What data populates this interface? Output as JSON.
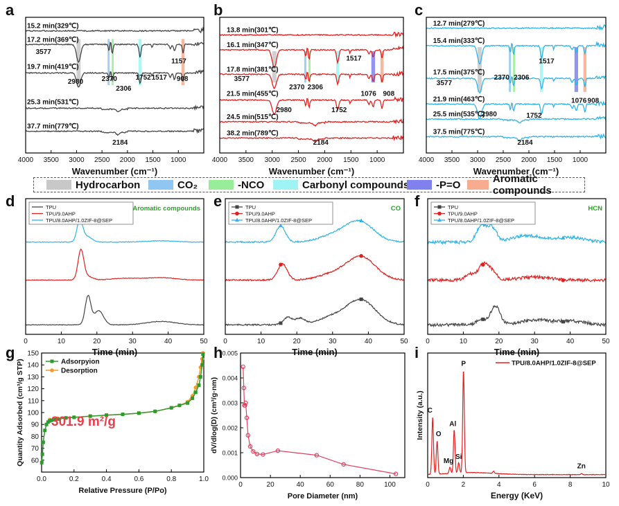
{
  "legend_bar": [
    {
      "label": "Hydrocarbon",
      "color": "#c8c8c8"
    },
    {
      "label": "CO₂",
      "color": "#8fc7f2"
    },
    {
      "label": "-NCO",
      "color": "#98ee98"
    },
    {
      "label": "Carbonyl compounds",
      "color": "#9ef4f4"
    },
    {
      "label": "-P=O",
      "color": "#8080ee"
    },
    {
      "label": "Aromatic compounds",
      "color": "#f7ac8f"
    }
  ],
  "chart_data": [
    {
      "panel": "a",
      "type": "line",
      "title": "",
      "xlabel": "Wavenumber (cm⁻¹)",
      "ylabel": "",
      "xlim": [
        4000,
        500
      ],
      "xticks": [
        4000,
        3500,
        3000,
        2500,
        2000,
        1500,
        1000
      ],
      "line_color": "#444444",
      "series": [
        {
          "name": "15.2 min(329℃)"
        },
        {
          "name": "17.2 min(369℃)"
        },
        {
          "name": "19.7 min(419℃)"
        },
        {
          "name": "25.3 min(531℃)"
        },
        {
          "name": "37.7 min(779℃)"
        }
      ],
      "bands": [
        "Hydrocarbon",
        "CO₂",
        "-NCO",
        "Carbonyl compounds",
        "Aromatic compounds"
      ],
      "annotations": [
        "3577",
        "2980",
        "2370",
        "2306",
        "1752",
        "1517",
        "1157",
        "908",
        "2184"
      ]
    },
    {
      "panel": "b",
      "type": "line",
      "title": "",
      "xlabel": "Wavenumber (cm⁻¹)",
      "ylabel": "",
      "xlim": [
        4000,
        500
      ],
      "xticks": [
        4000,
        3500,
        3000,
        2500,
        2000,
        1500,
        1000
      ],
      "line_color": "#e0201e",
      "series": [
        {
          "name": "13.8 min(301℃)"
        },
        {
          "name": "16.1 min(347℃)"
        },
        {
          "name": "17.8 min(381℃)"
        },
        {
          "name": "21.5 min(455℃)"
        },
        {
          "name": "24.5 min(515℃)"
        },
        {
          "name": "38.2 min(789℃)"
        }
      ],
      "bands": [
        "Hydrocarbon",
        "CO₂",
        "-NCO",
        "Carbonyl compounds",
        "-P=O",
        "Aromatic compounds"
      ],
      "annotations": [
        "1517",
        "3577",
        "2370",
        "2306",
        "1076",
        "908",
        "2980",
        "1752",
        "2184"
      ]
    },
    {
      "panel": "c",
      "type": "line",
      "title": "",
      "xlabel": "Wavenumber (cm⁻¹)",
      "ylabel": "",
      "xlim": [
        4000,
        500
      ],
      "xticks": [
        4000,
        3500,
        3000,
        2500,
        2000,
        1500,
        1000
      ],
      "line_color": "#2fb4e8",
      "series": [
        {
          "name": "12.7 min(279℃)"
        },
        {
          "name": "15.4 min(333℃)"
        },
        {
          "name": "17.5 min(375℃)"
        },
        {
          "name": "21.9 min(463℃)"
        },
        {
          "name": "25.5 min(535℃)"
        },
        {
          "name": "37.5 min(775℃)"
        }
      ],
      "bands": [
        "Hydrocarbon",
        "CO₂",
        "-NCO",
        "Carbonyl compounds",
        "-P=O",
        "Aromatic compounds"
      ],
      "annotations": [
        "1517",
        "3577",
        "2370",
        "2306",
        "1076",
        "908",
        "2980",
        "1752",
        "2184"
      ]
    },
    {
      "panel": "d",
      "type": "line",
      "title": "Aromatic compounds",
      "xlabel": "Time (min)",
      "ylabel": "",
      "xlim": [
        0,
        50
      ],
      "xticks": [
        0,
        10,
        20,
        30,
        40,
        50
      ],
      "series": [
        {
          "name": "TPU",
          "color": "#444444",
          "marker": "",
          "peaks": [
            [
              17.5,
              1.0
            ],
            [
              20.5,
              0.5
            ],
            [
              38,
              0.12
            ]
          ]
        },
        {
          "name": "TPU/9.0AHP",
          "color": "#e0201e",
          "marker": "",
          "peaks": [
            [
              15.5,
              1.0
            ],
            [
              17.5,
              0.12
            ],
            [
              28,
              0.06
            ],
            [
              38,
              0.08
            ]
          ]
        },
        {
          "name": "TPU/8.0AHP/1.0ZIF-8@SEP",
          "color": "#2fb4e8",
          "marker": "",
          "peaks": [
            [
              15.2,
              1.0
            ],
            [
              17.3,
              0.25
            ],
            [
              38,
              0.06
            ]
          ]
        }
      ]
    },
    {
      "panel": "e",
      "type": "line",
      "title": "CO",
      "xlabel": "Time (min)",
      "ylabel": "",
      "xlim": [
        0,
        50
      ],
      "xticks": [
        0,
        10,
        20,
        30,
        40,
        50
      ],
      "series": [
        {
          "name": "TPU",
          "color": "#444444",
          "marker": "square",
          "peaks": [
            [
              17.5,
              0.3
            ],
            [
              21,
              0.25
            ],
            [
              30,
              0.3
            ],
            [
              38,
              1.0
            ]
          ]
        },
        {
          "name": "TPU/9.0AHP",
          "color": "#e0201e",
          "marker": "circle",
          "peaks": [
            [
              16,
              0.7
            ],
            [
              30,
              0.25
            ],
            [
              38,
              1.0
            ]
          ]
        },
        {
          "name": "TPU/8.0AHP/1.0ZIF-8@SEP",
          "color": "#2fb4e8",
          "marker": "triangle",
          "peaks": [
            [
              15.5,
              0.8
            ],
            [
              30,
              0.3
            ],
            [
              37.5,
              1.0
            ]
          ]
        }
      ]
    },
    {
      "panel": "f",
      "type": "line",
      "title": "HCN",
      "xlabel": "Time (min)",
      "ylabel": "",
      "xlim": [
        0,
        50
      ],
      "xticks": [
        0,
        10,
        20,
        30,
        40,
        50
      ],
      "series": [
        {
          "name": "TPU",
          "color": "#444444",
          "marker": "square",
          "peaks": [
            [
              15,
              0.3
            ],
            [
              19,
              1.0
            ],
            [
              30,
              0.25
            ],
            [
              40,
              0.2
            ]
          ]
        },
        {
          "name": "TPU/9.0AHP",
          "color": "#e0201e",
          "marker": "circle",
          "peaks": [
            [
              12,
              0.4
            ],
            [
              15.5,
              1.0
            ],
            [
              18,
              0.6
            ],
            [
              30,
              0.2
            ]
          ]
        },
        {
          "name": "TPU/8.0AHP/1.0ZIF-8@SEP",
          "color": "#2fb4e8",
          "marker": "triangle",
          "peaks": [
            [
              15,
              1.0
            ],
            [
              18,
              0.9
            ],
            [
              28,
              0.4
            ],
            [
              40,
              0.3
            ]
          ]
        }
      ]
    },
    {
      "panel": "g",
      "type": "line",
      "title": "",
      "xlabel": "Relative Pressure (P/Po)",
      "ylabel": "Quantity Adsorbed (cm³/g STP)",
      "xlim": [
        0,
        1.0
      ],
      "ylim": [
        50,
        150
      ],
      "xticks": [
        0.0,
        0.2,
        0.4,
        0.6,
        0.8,
        1.0
      ],
      "yticks": [
        60,
        70,
        80,
        90,
        100,
        110,
        120,
        130,
        140,
        150
      ],
      "annotation": "301.9 m²/g",
      "series": [
        {
          "name": "Adsorpyion",
          "color": "#2e9a2e",
          "marker": "square",
          "x": [
            0.001,
            0.005,
            0.01,
            0.02,
            0.03,
            0.04,
            0.05,
            0.06,
            0.08,
            0.1,
            0.15,
            0.2,
            0.3,
            0.4,
            0.5,
            0.6,
            0.7,
            0.8,
            0.85,
            0.9,
            0.93,
            0.95,
            0.97,
            0.98,
            0.99,
            0.995
          ],
          "y": [
            58,
            65,
            75,
            85,
            90,
            92,
            93,
            93.5,
            94,
            94.5,
            95.5,
            96,
            97,
            97.8,
            98.5,
            99.5,
            101,
            104,
            106,
            108,
            112,
            117,
            123,
            130,
            140,
            149
          ]
        },
        {
          "name": "Desorption",
          "color": "#f39a2c",
          "marker": "circle",
          "x": [
            0.995,
            0.99,
            0.98,
            0.97,
            0.95,
            0.93,
            0.9,
            0.85,
            0.8,
            0.7,
            0.6,
            0.5,
            0.4,
            0.3,
            0.2,
            0.15,
            0.1,
            0.05
          ],
          "y": [
            150,
            145,
            138,
            130,
            121,
            114,
            109,
            106,
            104,
            101,
            99.5,
            98.5,
            97.8,
            97,
            96,
            95.5,
            95,
            94
          ]
        }
      ]
    },
    {
      "panel": "h",
      "type": "line",
      "title": "",
      "xlabel": "Pore Diameter (nm)",
      "ylabel": "dV/dlog(D) (cm³/g·nm)",
      "xlim": [
        0,
        110
      ],
      "ylim": [
        0,
        0.005
      ],
      "xticks": [
        0,
        20,
        40,
        60,
        80,
        100
      ],
      "yticks": [
        0.0,
        0.001,
        0.002,
        0.003,
        0.004,
        0.005
      ],
      "series": [
        {
          "name": "",
          "color": "#e0405e",
          "marker": "circle",
          "x": [
            1.7,
            2.2,
            2.6,
            3.0,
            3.5,
            4.2,
            5.0,
            6.5,
            8.5,
            11,
            15,
            25,
            51,
            69,
            104
          ],
          "y": [
            0.00445,
            0.0036,
            0.0029,
            0.0029,
            0.003,
            0.0024,
            0.0017,
            0.00125,
            0.00105,
            0.00095,
            0.00093,
            0.00108,
            0.0009,
            0.00053,
            0.00015
          ]
        }
      ]
    },
    {
      "panel": "i",
      "type": "line",
      "title": "",
      "xlabel": "Energy (KeV)",
      "ylabel": "Intensity (a.u.)",
      "xlim": [
        0,
        10
      ],
      "xticks": [
        0,
        2,
        4,
        6,
        8,
        10
      ],
      "series": [
        {
          "name": "TPU/8.0AHP/1.0ZIF-8@SEP",
          "color": "#e0201e",
          "marker": "",
          "peaks": [
            [
              0.28,
              0.55,
              "C"
            ],
            [
              0.53,
              0.32,
              "O"
            ],
            [
              1.25,
              0.06,
              "Mg"
            ],
            [
              1.49,
              0.42,
              "Al"
            ],
            [
              1.74,
              0.1,
              "Si"
            ],
            [
              2.01,
              1.0,
              "P"
            ],
            [
              3.7,
              0.02,
              ""
            ],
            [
              8.63,
              0.01,
              "Zn"
            ]
          ]
        }
      ]
    }
  ]
}
